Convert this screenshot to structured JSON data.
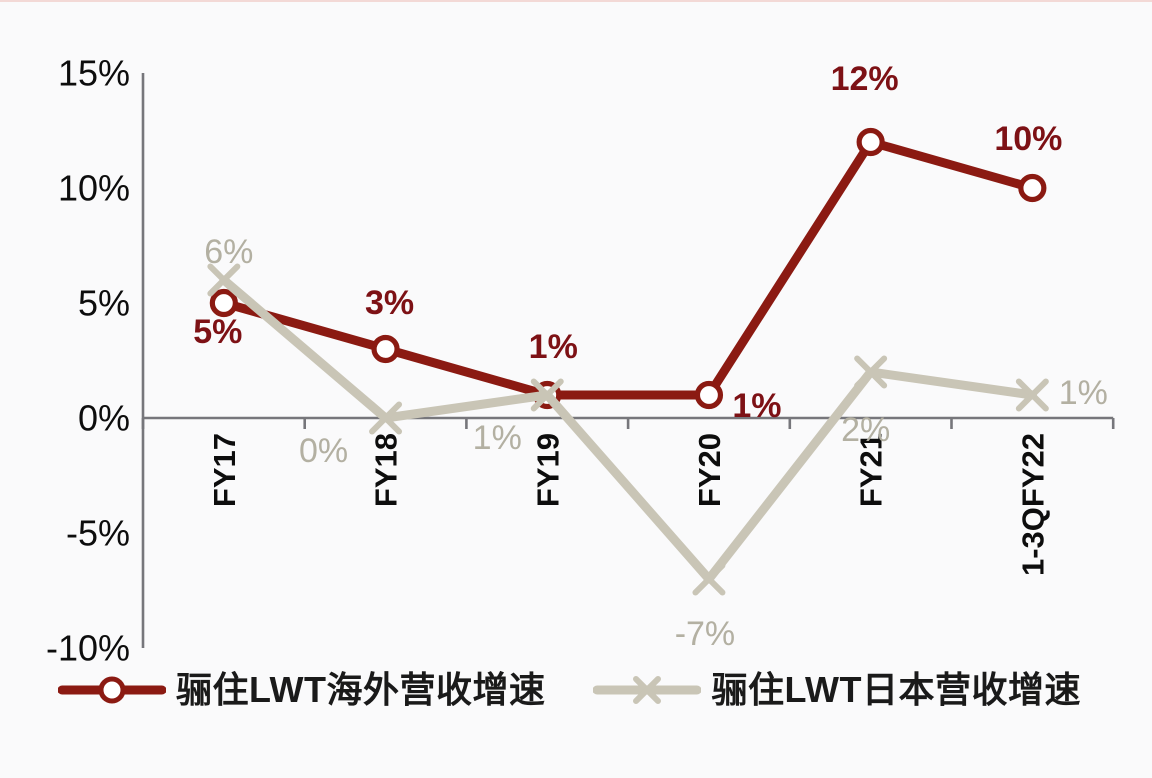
{
  "page": {
    "background_color": "#fafafb",
    "top_edge_accent_color": "#f3d9d6"
  },
  "chart_data": {
    "type": "line",
    "categories": [
      "FY17",
      "FY18",
      "FY19",
      "FY20",
      "FY21",
      "1-3QFY22"
    ],
    "series": [
      {
        "name": "骊住LWT海外营收增速",
        "marker": "circle",
        "color": "#8b1a12",
        "label_color": "#7d1115",
        "values": [
          5,
          3,
          1,
          1,
          12,
          10
        ],
        "labels": [
          "5%",
          "3%",
          "1%",
          "1%",
          "12%",
          "10%"
        ]
      },
      {
        "name": "骊住LWT日本营收增速",
        "marker": "x",
        "color": "#c9c5b6",
        "label_color": "#b3b0a2",
        "values": [
          6,
          0,
          1,
          -7,
          2,
          1
        ],
        "labels": [
          "6%",
          "0%",
          "1%",
          "-7%",
          "2%",
          "1%"
        ]
      }
    ],
    "y_ticks": [
      "15%",
      "10%",
      "5%",
      "0%",
      "-5%",
      "-10%"
    ],
    "y_tick_values": [
      15,
      10,
      5,
      0,
      -5,
      -10
    ],
    "ylim": [
      -10,
      15
    ],
    "grid": false,
    "legend_position": "bottom",
    "axis_color": "#76767b",
    "tick_label_color": "#0d0d0d",
    "title": "",
    "xlabel": "",
    "ylabel": ""
  }
}
